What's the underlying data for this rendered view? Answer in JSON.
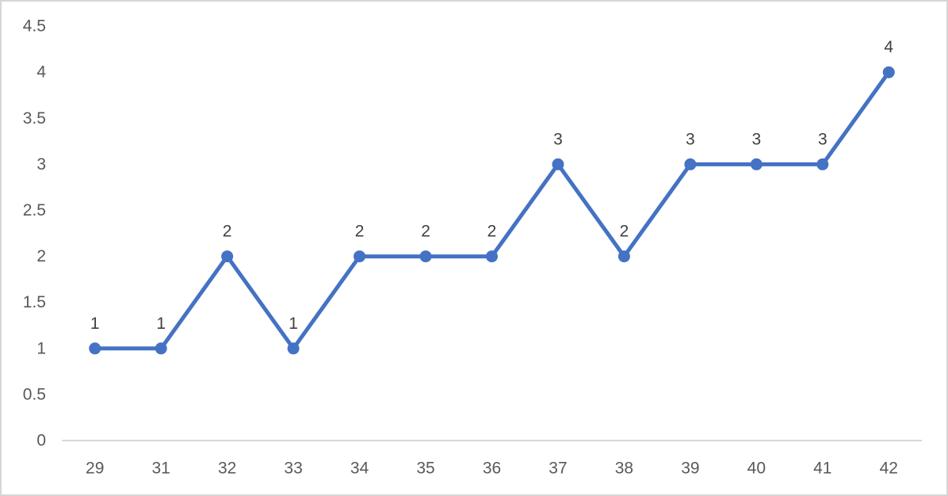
{
  "chart_data": {
    "type": "line",
    "categories": [
      "29",
      "31",
      "32",
      "33",
      "34",
      "35",
      "36",
      "37",
      "38",
      "39",
      "40",
      "41",
      "42"
    ],
    "values": [
      1,
      1,
      2,
      1,
      2,
      2,
      2,
      3,
      2,
      3,
      3,
      3,
      4
    ],
    "data_labels": [
      "1",
      "1",
      "2",
      "1",
      "2",
      "2",
      "2",
      "3",
      "2",
      "3",
      "3",
      "3",
      "4"
    ],
    "title": "",
    "xlabel": "",
    "ylabel": "",
    "ylim": [
      0,
      4.5
    ],
    "ytick_step": 0.5,
    "yticks": [
      "0",
      "0.5",
      "1",
      "1.5",
      "2",
      "2.5",
      "3",
      "3.5",
      "4",
      "4.5"
    ],
    "grid": false,
    "legend": false,
    "colors": {
      "line": "#4472C4",
      "marker": "#4472C4",
      "axis_line": "#D9D9D9",
      "tick_label": "#595959",
      "data_label": "#404040",
      "background": "#FFFFFF",
      "frame_border": "#D6D6D6"
    }
  }
}
